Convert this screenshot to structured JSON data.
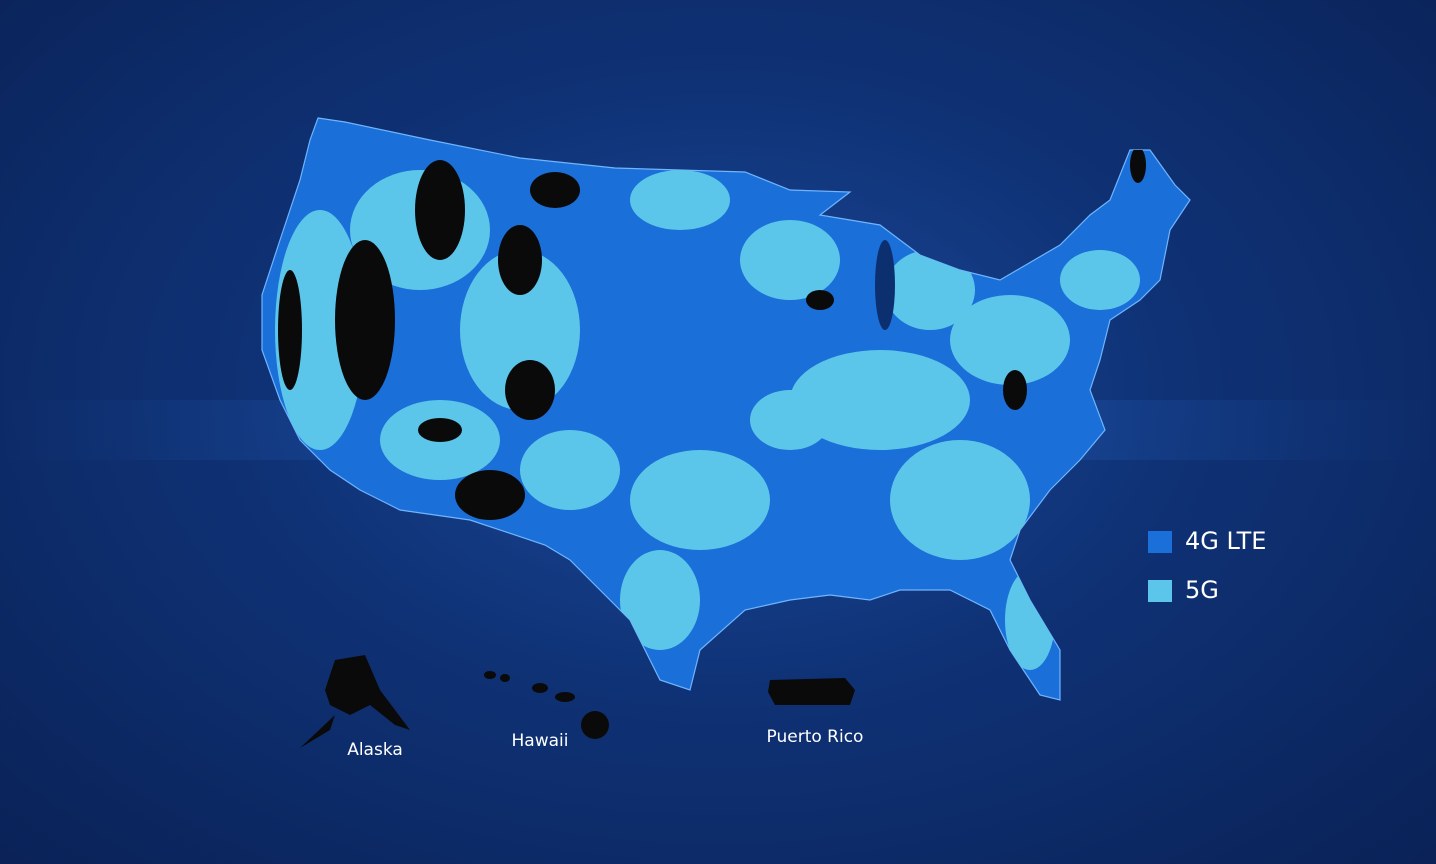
{
  "legend": [
    {
      "label": "4G LTE",
      "color": "#1a6fd8"
    },
    {
      "label": "5G",
      "color": "#5cc6ea"
    }
  ],
  "labels": {
    "alaska": "Alaska",
    "hawaii": "Hawaii",
    "puerto_rico": "Puerto Rico"
  }
}
